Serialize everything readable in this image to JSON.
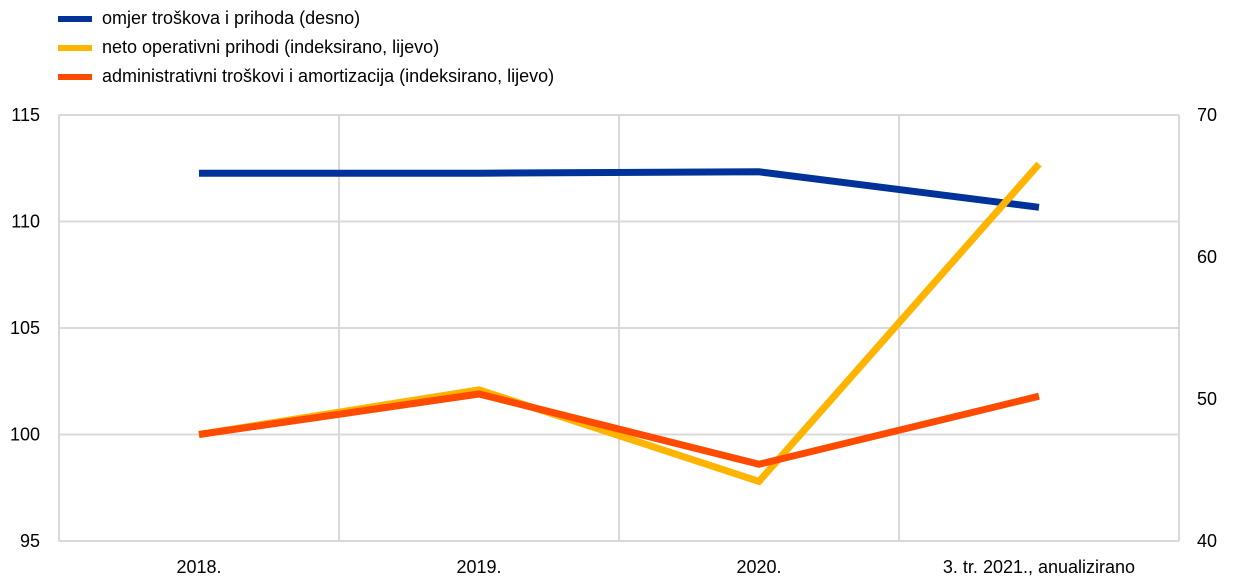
{
  "chart_data": {
    "type": "line",
    "categories": [
      "2018.",
      "2019.",
      "2020.",
      "3. tr. 2021., anualizirano"
    ],
    "series": [
      {
        "name": "omjer troškova i prihoda (desno)",
        "axis": "right",
        "color": "#003299",
        "values": [
          65.9,
          65.9,
          66.0,
          63.5
        ]
      },
      {
        "name": "neto operativni prihodi (indeksirano, lijevo)",
        "axis": "left",
        "color": "#FFB400",
        "values": [
          100.0,
          102.1,
          97.8,
          112.7
        ]
      },
      {
        "name": "administrativni troškovi i amortizacija (indeksirano, lijevo)",
        "axis": "left",
        "color": "#FF4B00",
        "values": [
          100.0,
          101.9,
          98.6,
          101.8
        ]
      }
    ],
    "y_left": {
      "ylim": [
        95,
        115
      ],
      "ticks": [
        95,
        100,
        105,
        110,
        115
      ]
    },
    "y_right": {
      "ylim": [
        40,
        70
      ],
      "ticks": [
        40,
        50,
        60,
        70
      ]
    },
    "grid": true,
    "legend_position": "top-left"
  }
}
